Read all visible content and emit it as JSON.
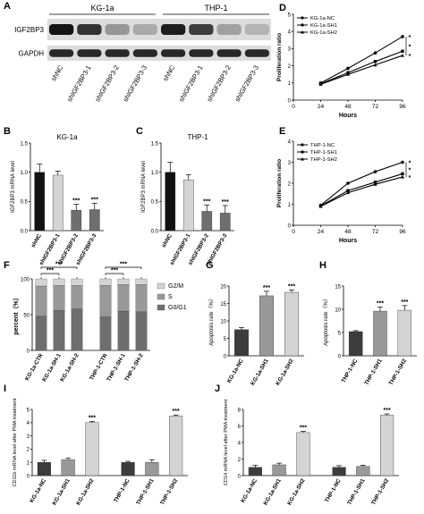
{
  "figure": {
    "panel_letters": [
      "A",
      "B",
      "C",
      "D",
      "E",
      "F",
      "G",
      "H",
      "I",
      "J"
    ]
  },
  "colors": {
    "black": "#111111",
    "light_gray": "#d4d4d4",
    "dark_gray": "#6e6e6e",
    "mid_gray": "#999999",
    "very_dark": "#3c3c3c"
  },
  "western_blot": {
    "protein_labels": [
      "IGF2BP3",
      "GAPDH"
    ],
    "cell_lines": [
      "KG-1a",
      "THP-1"
    ],
    "lane_labels": [
      "shNC",
      "shIGF2BP3-1",
      "shIGF2BP3-2",
      "shIGF2BP3-3",
      "shNC",
      "shIGF2BP3-1",
      "shIGF2BP3-2",
      "shIGF2BP3-3"
    ],
    "igf2bp3_intensity": [
      1.0,
      0.85,
      0.35,
      0.25,
      0.95,
      0.8,
      0.3,
      0.2
    ],
    "gapdh_intensity": [
      0.9,
      0.9,
      0.9,
      0.9,
      0.9,
      0.9,
      0.9,
      0.9
    ]
  },
  "chart_data": [
    {
      "panel": "B",
      "type": "bar",
      "title": "KG-1a",
      "ylabel": "IGF2BP3 mRNA level",
      "ylim": [
        0,
        1.5
      ],
      "yticks": [
        "0.0",
        "0.5",
        "1.0",
        "1.5"
      ],
      "categories": [
        "shNC",
        "shIGF2BP3-1",
        "shIGF2BP3-2",
        "shIGF2BP3-3"
      ],
      "values": [
        1.0,
        0.95,
        0.35,
        0.36
      ],
      "errors": [
        0.14,
        0.07,
        0.1,
        0.11
      ],
      "colors": [
        "#111111",
        "#d4d4d4",
        "#6e6e6e",
        "#6e6e6e"
      ],
      "annotations": [
        "",
        "",
        "***",
        "***"
      ]
    },
    {
      "panel": "C",
      "type": "bar",
      "title": "THP-1",
      "ylabel": "IGF2BP3 mRNA level",
      "ylim": [
        0,
        1.5
      ],
      "yticks": [
        "0.0",
        "0.5",
        "1.0",
        "1.5"
      ],
      "categories": [
        "shNC",
        "shIGF2BP3-1",
        "shIGF2BP3-2",
        "shIGF2BP3-3"
      ],
      "values": [
        1.0,
        0.87,
        0.33,
        0.3
      ],
      "errors": [
        0.17,
        0.09,
        0.11,
        0.13
      ],
      "colors": [
        "#111111",
        "#d4d4d4",
        "#6e6e6e",
        "#6e6e6e"
      ],
      "annotations": [
        "",
        "",
        "***",
        "***"
      ]
    },
    {
      "panel": "D",
      "type": "line",
      "xlabel": "Hours",
      "ylabel": "Proliferation ratio",
      "x": [
        0,
        24,
        48,
        72,
        96
      ],
      "xticks": [
        "0",
        "24",
        "48",
        "72",
        "96"
      ],
      "ylim": [
        0,
        5
      ],
      "yticks": [
        "0",
        "1",
        "2",
        "3",
        "4",
        "5"
      ],
      "series": [
        {
          "name": "KG-1a-NC",
          "values": [
            null,
            1.0,
            1.85,
            2.75,
            3.7
          ]
        },
        {
          "name": "KG-1a-SH1",
          "values": [
            null,
            0.95,
            1.6,
            2.25,
            2.85
          ]
        },
        {
          "name": "KG-1a-SH2",
          "values": [
            null,
            0.92,
            1.5,
            2.05,
            2.6
          ]
        }
      ],
      "annotations": [
        "*",
        "*",
        "*"
      ]
    },
    {
      "panel": "E",
      "type": "line",
      "xlabel": "Hours",
      "ylabel": "Proliferation ratio",
      "x": [
        0,
        24,
        48,
        72,
        96
      ],
      "xticks": [
        "0",
        "24",
        "48",
        "72",
        "96"
      ],
      "ylim": [
        0,
        4
      ],
      "yticks": [
        "0",
        "1",
        "2",
        "3",
        "4"
      ],
      "series": [
        {
          "name": "THP-1-NC",
          "values": [
            null,
            0.95,
            2.0,
            2.55,
            3.0
          ]
        },
        {
          "name": "THP-1-SH1",
          "values": [
            null,
            0.92,
            1.65,
            2.05,
            2.45
          ]
        },
        {
          "name": "THP-1-SH2",
          "values": [
            null,
            0.9,
            1.55,
            1.95,
            2.3
          ]
        }
      ],
      "annotations": [
        "*",
        "*",
        "*"
      ]
    },
    {
      "panel": "F",
      "type": "bar",
      "stacked": true,
      "ylabel": "percent（%）",
      "ylim": [
        0,
        100
      ],
      "yticks": [
        "0",
        "50",
        "100"
      ],
      "categories": [
        "KG-1a-CTR",
        "KG-1a-SH-1",
        "KG-1a-SH-2",
        "THP-1-CTR",
        "THP-1-SH-1",
        "THP-1-SH-2"
      ],
      "series": [
        {
          "name": "G0/G1",
          "values": [
            48,
            56,
            58,
            47,
            55,
            54
          ],
          "color": "#6e6e6e"
        },
        {
          "name": "S",
          "values": [
            42,
            35,
            33,
            44,
            37,
            38
          ],
          "color": "#999999"
        },
        {
          "name": "G2/M",
          "values": [
            10,
            9,
            9,
            9,
            8,
            8
          ],
          "color": "#d4d4d4"
        }
      ],
      "brackets": [
        {
          "from": 0,
          "to": 1,
          "label": "***"
        },
        {
          "from": 0,
          "to": 2,
          "label": "***"
        },
        {
          "from": 3,
          "to": 4,
          "label": "***"
        },
        {
          "from": 3,
          "to": 5,
          "label": "***"
        }
      ]
    },
    {
      "panel": "G",
      "type": "bar",
      "ylabel": "Apoptosis rate（%）",
      "ylim": [
        0,
        20
      ],
      "yticks": [
        "0",
        "5",
        "10",
        "15",
        "20"
      ],
      "categories": [
        "KG-1a-NC",
        "KG-1a-SH1",
        "KG-1a-SH2"
      ],
      "values": [
        7.5,
        17.2,
        18.2
      ],
      "errors": [
        0.6,
        1.3,
        0.7
      ],
      "colors": [
        "#3c3c3c",
        "#999999",
        "#d4d4d4"
      ],
      "annotations": [
        "",
        "***",
        "***"
      ]
    },
    {
      "panel": "H",
      "type": "bar",
      "ylabel": "Apoptosis rate（%）",
      "ylim": [
        0,
        15
      ],
      "yticks": [
        "0",
        "5",
        "10",
        "15"
      ],
      "categories": [
        "THP-1-NC",
        "THP-1-SH1",
        "THP-1-SH2"
      ],
      "values": [
        5.2,
        9.6,
        9.8
      ],
      "errors": [
        0.2,
        0.9,
        1.0
      ],
      "colors": [
        "#3c3c3c",
        "#999999",
        "#d4d4d4"
      ],
      "annotations": [
        "",
        "***",
        "***"
      ]
    },
    {
      "panel": "I",
      "type": "bar",
      "ylabel": "CD11b mRNA level after PMA treatment",
      "ylim": [
        0,
        5
      ],
      "yticks": [
        "0",
        "1",
        "2",
        "3",
        "4",
        "5"
      ],
      "categories": [
        "KG-1a-NC",
        "KG-1a-SH1",
        "KG-1a-SH2",
        "THP-1-NC",
        "THP-1-SH1",
        "THP-1-SH2"
      ],
      "values": [
        1.0,
        1.2,
        4.0,
        1.0,
        1.0,
        4.5
      ],
      "errors": [
        0.15,
        0.12,
        0.08,
        0.08,
        0.2,
        0.08
      ],
      "colors": [
        "#3c3c3c",
        "#999999",
        "#d4d4d4",
        "#3c3c3c",
        "#999999",
        "#d4d4d4"
      ],
      "annotations": [
        "",
        "",
        "***",
        "",
        "",
        "***"
      ]
    },
    {
      "panel": "J",
      "type": "bar",
      "ylabel": "CD14 mRNA level after PMA treatment",
      "ylim": [
        0,
        8
      ],
      "yticks": [
        "0",
        "2",
        "4",
        "6",
        "8"
      ],
      "categories": [
        "KG-1a-NC",
        "KG-1a-SH1",
        "KG-1a-SH2",
        "THP-1-NC",
        "THP-1-SH1",
        "THP-1-SH2"
      ],
      "values": [
        1.0,
        1.3,
        5.2,
        1.0,
        1.1,
        7.3
      ],
      "errors": [
        0.25,
        0.2,
        0.15,
        0.2,
        0.15,
        0.15
      ],
      "colors": [
        "#3c3c3c",
        "#999999",
        "#d4d4d4",
        "#3c3c3c",
        "#999999",
        "#d4d4d4"
      ],
      "annotations": [
        "",
        "",
        "***",
        "",
        "",
        "***"
      ]
    }
  ]
}
